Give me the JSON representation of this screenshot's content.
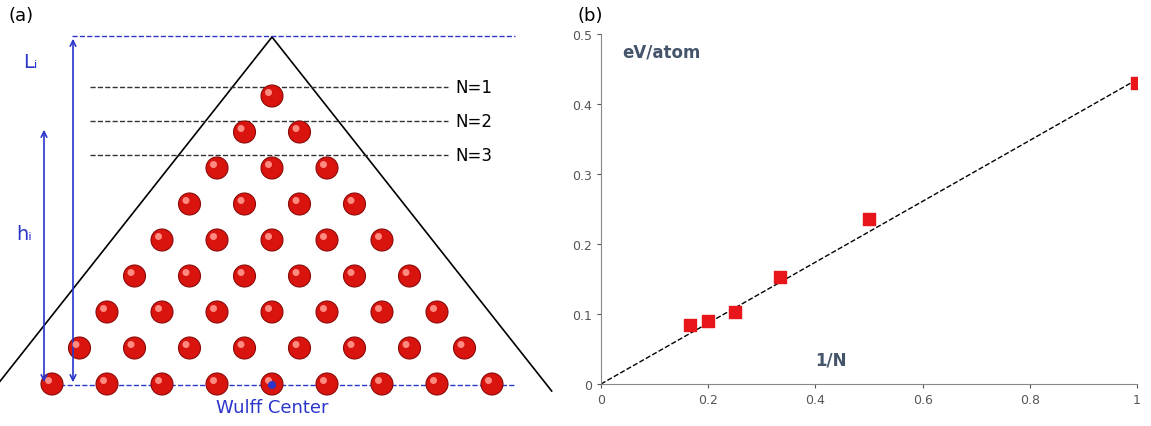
{
  "panel_labels": [
    "(a)",
    "(b)"
  ],
  "diagram": {
    "layer_labels": [
      "N=1",
      "N=2",
      "N=3"
    ],
    "length_label": "Lᵢ",
    "height_label": "hᵢ",
    "center_label": "Wulff Center"
  },
  "chart_data": {
    "type": "scatter",
    "x_label": "1/N",
    "y_label": "eV/atom",
    "xlim": [
      0,
      1
    ],
    "xticks": [
      0,
      0.2,
      0.4,
      0.6,
      0.8,
      1
    ],
    "ylim": [
      0,
      0.5
    ],
    "yticks": [
      0,
      0.1,
      0.2,
      0.3,
      0.4,
      0.5
    ],
    "series": [
      {
        "type": "scatter",
        "color": "#e8161b",
        "marker": "square",
        "x": [
          0.1667,
          0.2,
          0.25,
          0.3333,
          0.5,
          1
        ],
        "values": [
          0.085,
          0.09,
          0.103,
          0.153,
          0.236,
          0.43
        ]
      },
      {
        "type": "line",
        "color": "#000000",
        "line_style": "dashed",
        "x": [
          0,
          1
        ],
        "values": [
          0,
          0.435
        ]
      }
    ]
  }
}
